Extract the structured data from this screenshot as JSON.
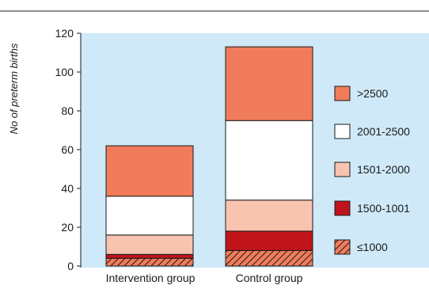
{
  "chart_data": {
    "type": "bar",
    "stacked": true,
    "ylabel": "No of preterm births",
    "xlabel": "",
    "ylim": [
      0,
      120
    ],
    "yticks": [
      0,
      20,
      40,
      60,
      80,
      100,
      120
    ],
    "categories": [
      "Intervention group",
      "Control group"
    ],
    "grid": false,
    "legend_position": "right",
    "series": [
      {
        "name": "≤1000",
        "values": [
          4,
          8
        ],
        "color": "#f07c5c",
        "hatch": true
      },
      {
        "name": "1500-1001",
        "values": [
          2,
          10
        ],
        "color": "#c0141c",
        "hatch": false
      },
      {
        "name": "1501-2000",
        "values": [
          10,
          16
        ],
        "color": "#f8c4b0",
        "hatch": false
      },
      {
        "name": "2001-2500",
        "values": [
          20,
          41
        ],
        "color": "#ffffff",
        "hatch": false
      },
      {
        "name": ">2500",
        "values": [
          26,
          38
        ],
        "color": "#f07c5c",
        "hatch": false
      }
    ],
    "legend_order": [
      ">2500",
      "2001-2500",
      "1501-2000",
      "1500-1001",
      "≤1000"
    ],
    "plot_background": "#cfe9f8"
  }
}
